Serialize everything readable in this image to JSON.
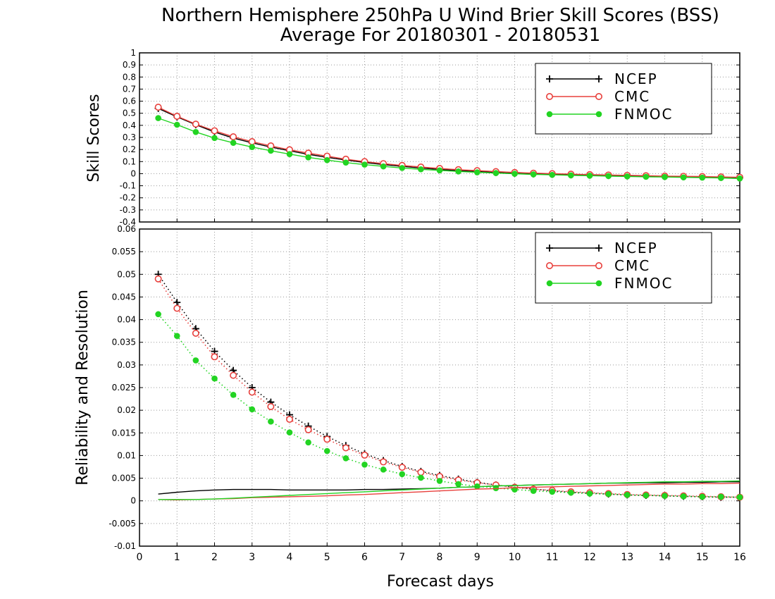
{
  "title_line1": "Northern Hemisphere 250hPa U Wind Brier Skill Scores (BSS)",
  "title_line2": "Average For 20180301 - 20180531",
  "xlabel": "Forecast days",
  "colors": {
    "NCEP": "#000000",
    "CMC": "#e8403c",
    "FNMOC": "#22d422"
  },
  "chart_data": [
    {
      "type": "line",
      "ylabel": "Skill Scores",
      "xlim": [
        0,
        16
      ],
      "ylim": [
        -0.4,
        1
      ],
      "x_ticks": [
        0,
        1,
        2,
        3,
        4,
        5,
        6,
        7,
        8,
        9,
        10,
        11,
        12,
        13,
        14,
        15,
        16
      ],
      "y_ticks": [
        "-0.4",
        "-0.3",
        "-0.2",
        "-0.1",
        "0",
        "0.1",
        "0.2",
        "0.3",
        "0.4",
        "0.5",
        "0.6",
        "0.7",
        "0.8",
        "0.9",
        "1"
      ],
      "grid": true,
      "legend_position": "top-right",
      "x": [
        0.5,
        1,
        1.5,
        2,
        2.5,
        3,
        3.5,
        4,
        4.5,
        5,
        5.5,
        6,
        6.5,
        7,
        7.5,
        8,
        8.5,
        9,
        9.5,
        10,
        10.5,
        11,
        11.5,
        12,
        12.5,
        13,
        13.5,
        14,
        14.5,
        15,
        15.5,
        16
      ],
      "series": [
        {
          "name": "NCEP",
          "marker": "plus",
          "style": "solid",
          "values": [
            0.54,
            0.47,
            0.405,
            0.345,
            0.295,
            0.255,
            0.22,
            0.19,
            0.16,
            0.135,
            0.113,
            0.093,
            0.075,
            0.06,
            0.047,
            0.035,
            0.025,
            0.017,
            0.01,
            0.003,
            -0.002,
            -0.006,
            -0.01,
            -0.013,
            -0.016,
            -0.019,
            -0.021,
            -0.023,
            -0.025,
            -0.027,
            -0.03,
            -0.032
          ]
        },
        {
          "name": "CMC",
          "marker": "open-circle",
          "style": "solid",
          "values": [
            0.55,
            0.475,
            0.41,
            0.355,
            0.305,
            0.265,
            0.23,
            0.198,
            0.17,
            0.145,
            0.12,
            0.1,
            0.083,
            0.068,
            0.055,
            0.043,
            0.033,
            0.025,
            0.017,
            0.01,
            0.004,
            0,
            -0.004,
            -0.008,
            -0.011,
            -0.014,
            -0.017,
            -0.02,
            -0.022,
            -0.024,
            -0.027,
            -0.03
          ]
        },
        {
          "name": "FNMOC",
          "marker": "filled-circle",
          "style": "solid",
          "values": [
            0.46,
            0.405,
            0.345,
            0.295,
            0.255,
            0.22,
            0.19,
            0.162,
            0.135,
            0.112,
            0.092,
            0.075,
            0.06,
            0.047,
            0.036,
            0.027,
            0.018,
            0.011,
            0.005,
            -0.001,
            -0.006,
            -0.01,
            -0.014,
            -0.017,
            -0.02,
            -0.023,
            -0.026,
            -0.028,
            -0.031,
            -0.033,
            -0.036,
            -0.04
          ]
        }
      ]
    },
    {
      "type": "line",
      "ylabel": "Reliability and Resolution",
      "xlim": [
        0,
        16
      ],
      "ylim": [
        -0.01,
        0.06
      ],
      "x_ticks": [
        0,
        1,
        2,
        3,
        4,
        5,
        6,
        7,
        8,
        9,
        10,
        11,
        12,
        13,
        14,
        15,
        16
      ],
      "y_ticks": [
        "-0.01",
        "-0.005",
        "0",
        "0.005",
        "0.01",
        "0.015",
        "0.02",
        "0.025",
        "0.03",
        "0.035",
        "0.04",
        "0.045",
        "0.05",
        "0.055",
        "0.06"
      ],
      "grid": true,
      "legend_position": "top-right",
      "x": [
        0.5,
        1,
        1.5,
        2,
        2.5,
        3,
        3.5,
        4,
        4.5,
        5,
        5.5,
        6,
        6.5,
        7,
        7.5,
        8,
        8.5,
        9,
        9.5,
        10,
        10.5,
        11,
        11.5,
        12,
        12.5,
        13,
        13.5,
        14,
        14.5,
        15,
        15.5,
        16
      ],
      "series": [
        {
          "name": "NCEP",
          "role": "resolution",
          "marker": "plus",
          "style": "dotted",
          "values": [
            0.05,
            0.0438,
            0.038,
            0.033,
            0.0288,
            0.025,
            0.0218,
            0.019,
            0.0165,
            0.0142,
            0.0122,
            0.0104,
            0.0089,
            0.0076,
            0.0065,
            0.0056,
            0.0048,
            0.0041,
            0.0035,
            0.003,
            0.0026,
            0.0022,
            0.0019,
            0.0017,
            0.0015,
            0.0013,
            0.0012,
            0.0011,
            0.001,
            0.0009,
            0.0008,
            0.0008
          ]
        },
        {
          "name": "CMC",
          "role": "resolution",
          "marker": "open-circle",
          "style": "dotted",
          "values": [
            0.049,
            0.0425,
            0.037,
            0.0318,
            0.0277,
            0.024,
            0.0208,
            0.018,
            0.0157,
            0.0136,
            0.0117,
            0.0101,
            0.0086,
            0.0074,
            0.0063,
            0.0054,
            0.0046,
            0.004,
            0.0035,
            0.003,
            0.0026,
            0.0023,
            0.002,
            0.0018,
            0.0016,
            0.0014,
            0.0013,
            0.0012,
            0.0011,
            0.001,
            0.0009,
            0.0008
          ]
        },
        {
          "name": "FNMOC",
          "role": "resolution",
          "marker": "filled-circle",
          "style": "dotted",
          "values": [
            0.0412,
            0.0364,
            0.031,
            0.027,
            0.0234,
            0.0202,
            0.0175,
            0.0151,
            0.0129,
            0.011,
            0.0094,
            0.008,
            0.0069,
            0.0059,
            0.0051,
            0.0044,
            0.0037,
            0.0032,
            0.0028,
            0.0025,
            0.0022,
            0.002,
            0.0018,
            0.0016,
            0.0015,
            0.0013,
            0.0012,
            0.0011,
            0.001,
            0.0009,
            0.0009,
            0.0008
          ]
        },
        {
          "name": "NCEP",
          "role": "reliability",
          "marker": "none",
          "style": "solid",
          "values": [
            0.0015,
            0.0019,
            0.0022,
            0.0024,
            0.0025,
            0.0025,
            0.0025,
            0.0024,
            0.0024,
            0.0024,
            0.0024,
            0.0025,
            0.0025,
            0.0026,
            0.0027,
            0.0028,
            0.003,
            0.0031,
            0.0033,
            0.0034,
            0.0035,
            0.0036,
            0.0037,
            0.0038,
            0.0039,
            0.0039,
            0.004,
            0.004,
            0.0041,
            0.0041,
            0.0042,
            0.0042
          ]
        },
        {
          "name": "CMC",
          "role": "reliability",
          "marker": "none",
          "style": "solid",
          "values": [
            0.0003,
            0.0002,
            0.0003,
            0.0004,
            0.0005,
            0.0007,
            0.0008,
            0.0009,
            0.001,
            0.0011,
            0.0013,
            0.0014,
            0.0016,
            0.0018,
            0.002,
            0.0022,
            0.0024,
            0.0026,
            0.0027,
            0.0029,
            0.003,
            0.0031,
            0.0032,
            0.0033,
            0.0034,
            0.0035,
            0.0036,
            0.0037,
            0.0037,
            0.0038,
            0.0038,
            0.0039
          ]
        },
        {
          "name": "FNMOC",
          "role": "reliability",
          "marker": "none",
          "style": "solid",
          "values": [
            0.0003,
            0.0003,
            0.0003,
            0.0004,
            0.0006,
            0.0008,
            0.001,
            0.0012,
            0.0014,
            0.0016,
            0.0018,
            0.002,
            0.0022,
            0.0024,
            0.0026,
            0.0028,
            0.003,
            0.0031,
            0.0033,
            0.0034,
            0.0035,
            0.0036,
            0.0037,
            0.0038,
            0.0039,
            0.004,
            0.0041,
            0.0042,
            0.0042,
            0.0043,
            0.0043,
            0.0044
          ]
        }
      ]
    }
  ]
}
